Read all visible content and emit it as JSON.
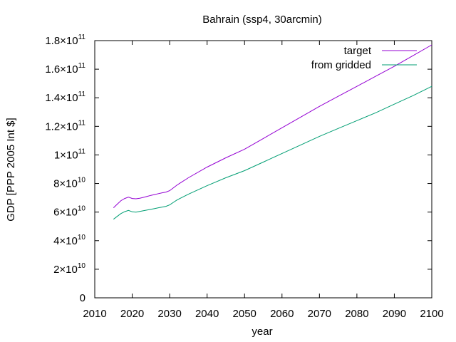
{
  "chart_data": {
    "type": "line",
    "title": "Bahrain (ssp4, 30arcmin)",
    "xlabel": "year",
    "ylabel": "GDP [PPP 2005 Int $]",
    "xlim": [
      2010,
      2100
    ],
    "ylim": [
      0,
      180000000000
    ],
    "xticks": [
      2010,
      2020,
      2030,
      2040,
      2050,
      2060,
      2070,
      2080,
      2090,
      2100
    ],
    "yticks": [
      {
        "value": 0,
        "mantissa": "0",
        "exponent": ""
      },
      {
        "value": 20000000000,
        "mantissa": "2×10",
        "exponent": "10"
      },
      {
        "value": 40000000000,
        "mantissa": "4×10",
        "exponent": "10"
      },
      {
        "value": 60000000000,
        "mantissa": "6×10",
        "exponent": "10"
      },
      {
        "value": 80000000000,
        "mantissa": "8×10",
        "exponent": "10"
      },
      {
        "value": 100000000000,
        "mantissa": "1×10",
        "exponent": "11"
      },
      {
        "value": 120000000000,
        "mantissa": "1.2×10",
        "exponent": "11"
      },
      {
        "value": 140000000000,
        "mantissa": "1.4×10",
        "exponent": "11"
      },
      {
        "value": 160000000000,
        "mantissa": "1.6×10",
        "exponent": "11"
      },
      {
        "value": 180000000000,
        "mantissa": "1.8×10",
        "exponent": "11"
      }
    ],
    "grid": false,
    "legend_position": "top-right",
    "series": [
      {
        "name": "target",
        "color": "#9400d3",
        "x": [
          2015,
          2016,
          2017,
          2018,
          2019,
          2020,
          2021,
          2022,
          2023,
          2024,
          2025,
          2026,
          2027,
          2028,
          2029,
          2030,
          2031,
          2032,
          2035,
          2040,
          2045,
          2050,
          2055,
          2060,
          2065,
          2070,
          2075,
          2080,
          2085,
          2090,
          2095,
          2100
        ],
        "y": [
          63000000000,
          65500000000,
          68000000000,
          69500000000,
          70500000000,
          69500000000,
          69300000000,
          69700000000,
          70300000000,
          71000000000,
          71700000000,
          72300000000,
          72900000000,
          73500000000,
          74000000000,
          75000000000,
          77000000000,
          79000000000,
          84000000000,
          91500000000,
          98000000000,
          104000000000,
          111500000000,
          119000000000,
          126500000000,
          134000000000,
          141000000000,
          148000000000,
          155000000000,
          162000000000,
          169500000000,
          177000000000
        ]
      },
      {
        "name": "from gridded",
        "color": "#009e73",
        "x": [
          2015,
          2016,
          2017,
          2018,
          2019,
          2020,
          2021,
          2022,
          2023,
          2024,
          2025,
          2026,
          2027,
          2028,
          2029,
          2030,
          2031,
          2032,
          2035,
          2040,
          2045,
          2050,
          2055,
          2060,
          2065,
          2070,
          2075,
          2080,
          2085,
          2090,
          2095,
          2100
        ],
        "y": [
          55000000000,
          57000000000,
          59000000000,
          60300000000,
          61200000000,
          60200000000,
          60000000000,
          60500000000,
          61000000000,
          61500000000,
          62000000000,
          62500000000,
          63000000000,
          63500000000,
          64000000000,
          65000000000,
          66800000000,
          68500000000,
          72500000000,
          78500000000,
          84000000000,
          89000000000,
          95000000000,
          101000000000,
          107000000000,
          113000000000,
          118500000000,
          124000000000,
          129500000000,
          135500000000,
          141500000000,
          148000000000
        ]
      }
    ]
  }
}
